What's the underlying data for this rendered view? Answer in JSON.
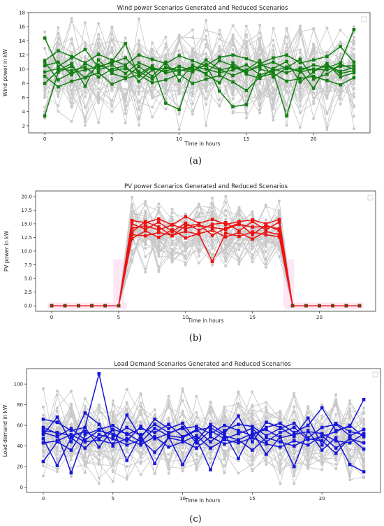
{
  "chart_data": [
    {
      "type": "line",
      "title": "Wind power Scenarios Generated and Reduced Scenarios",
      "xlabel": "Time in hours",
      "ylabel": "Wind power in kW",
      "caption": "(a)",
      "xlim": [
        -1.2,
        24.2
      ],
      "ylim": [
        1.0,
        18.0
      ],
      "xticks": [
        0,
        5,
        10,
        15,
        20
      ],
      "yticks": [
        2,
        4,
        6,
        8,
        10,
        12,
        14,
        16,
        18
      ],
      "x": [
        0,
        1,
        2,
        3,
        4,
        5,
        6,
        7,
        8,
        9,
        10,
        11,
        12,
        13,
        14,
        15,
        16,
        17,
        18,
        19,
        20,
        21,
        22,
        23
      ],
      "reduced_color": "#138013",
      "generated_color": "#c9c9c9",
      "grid": false,
      "legend": "top-right (empty)",
      "generated_range": [
        1.5,
        17.2
      ],
      "series": [
        {
          "values": [
            14.4,
            10.4,
            11.6,
            12.8,
            10.2,
            11.1,
            13.6,
            9.0,
            10.3,
            9.5,
            9.8,
            10.1,
            9.4,
            11.2,
            10.5,
            9.7,
            10.4,
            11.0,
            10.1,
            9.8,
            10.6,
            10.2,
            10.9,
            15.6
          ]
        },
        {
          "values": [
            3.4,
            9.6,
            10.4,
            8.8,
            10.6,
            9.8,
            10.1,
            9.3,
            10.5,
            5.2,
            4.3,
            9.8,
            10.7,
            6.9,
            4.7,
            5.0,
            10.0,
            9.5,
            3.4,
            9.9,
            7.3,
            10.5,
            9.4,
            9.8
          ]
        },
        {
          "values": [
            11.2,
            12.6,
            11.8,
            10.9,
            12.1,
            11.3,
            10.6,
            12.0,
            11.4,
            10.8,
            11.9,
            11.2,
            10.5,
            11.7,
            12.0,
            11.5,
            10.8,
            11.6,
            12.0,
            10.9,
            11.3,
            11.8,
            13.2,
            11.0
          ]
        },
        {
          "values": [
            9.0,
            7.5,
            8.3,
            8.8,
            9.5,
            7.9,
            8.7,
            9.2,
            8.1,
            8.5,
            9.3,
            8.0,
            8.6,
            9.1,
            8.2,
            7.0,
            8.9,
            9.4,
            8.3,
            8.7,
            9.0,
            8.4,
            7.8,
            8.8
          ]
        },
        {
          "values": [
            10.5,
            11.0,
            9.2,
            10.8,
            9.9,
            10.6,
            9.4,
            10.9,
            10.1,
            9.7,
            10.4,
            9.8,
            10.6,
            9.9,
            10.3,
            9.6,
            10.7,
            10.0,
            9.5,
            10.2,
            9.9,
            10.5,
            9.7,
            10.2
          ]
        },
        {
          "values": [
            8.0,
            9.8,
            10.8,
            7.6,
            11.3,
            9.4,
            8.8,
            10.4,
            9.0,
            11.0,
            8.4,
            10.6,
            9.2,
            8.1,
            10.9,
            9.3,
            8.7,
            10.1,
            11.1,
            8.2,
            9.6,
            10.8,
            8.9,
            9.5
          ]
        },
        {
          "values": [
            9.6,
            10.1,
            9.8,
            10.3,
            8.9,
            10.0,
            10.5,
            8.3,
            9.9,
            10.2,
            9.7,
            10.4,
            10.0,
            9.5,
            9.9,
            10.6,
            9.2,
            9.8,
            10.3,
            9.6,
            10.0,
            9.9,
            10.4,
            10.5
          ]
        },
        {
          "values": [
            11.0,
            8.5,
            9.5,
            9.9,
            10.4,
            10.9,
            11.6,
            9.7,
            8.6,
            10.3,
            9.9,
            9.6,
            11.3,
            10.0,
            9.1,
            9.9,
            11.2,
            8.9,
            10.2,
            11.4,
            8.6,
            9.3,
            10.7,
            10.0
          ]
        }
      ]
    },
    {
      "type": "line",
      "title": "PV power Scenarios Generated and Reduced Scenarios",
      "xlabel": "Time in hours",
      "ylabel": "PV power in kW",
      "caption": "(b)",
      "xlim": [
        -1.2,
        24.2
      ],
      "ylim": [
        -1.0,
        21.0
      ],
      "xticks": [
        0,
        5,
        10,
        15,
        20
      ],
      "yticks": [
        0.0,
        2.5,
        5.0,
        7.5,
        10.0,
        12.5,
        15.0,
        17.5,
        20.0
      ],
      "x": [
        0,
        1,
        2,
        3,
        4,
        5,
        6,
        7,
        8,
        9,
        10,
        11,
        12,
        13,
        14,
        15,
        16,
        17,
        18,
        19,
        20,
        21,
        22,
        23
      ],
      "reduced_color": "#ee1111",
      "generated_color": "#c9c9c9",
      "grid": false,
      "legend": "top-right (empty)",
      "generated_range": [
        6.0,
        20.2
      ],
      "series": [
        {
          "values": [
            0,
            0,
            0,
            0,
            0,
            0,
            15.6,
            15.2,
            15.9,
            14.8,
            16.3,
            15.1,
            15.8,
            14.9,
            15.4,
            15.7,
            15.0,
            15.8,
            0,
            0,
            0,
            0,
            0,
            0
          ]
        },
        {
          "values": [
            0,
            0,
            0,
            0,
            0,
            0,
            13.0,
            12.8,
            13.4,
            12.9,
            13.6,
            13.1,
            8.1,
            13.3,
            12.7,
            13.5,
            13.0,
            12.6,
            0,
            0,
            0,
            0,
            0,
            0
          ]
        },
        {
          "values": [
            0,
            0,
            0,
            0,
            0,
            0,
            14.2,
            14.6,
            13.9,
            14.8,
            14.1,
            14.7,
            14.3,
            14.0,
            14.9,
            14.4,
            14.5,
            14.1,
            0,
            0,
            0,
            0,
            0,
            0
          ]
        },
        {
          "values": [
            0,
            0,
            0,
            0,
            0,
            0,
            12.3,
            13.7,
            12.5,
            13.9,
            12.4,
            13.2,
            13.8,
            12.6,
            13.4,
            12.2,
            13.6,
            13.0,
            0,
            0,
            0,
            0,
            0,
            0
          ]
        },
        {
          "values": [
            0,
            0,
            0,
            0,
            0,
            0,
            15.0,
            14.0,
            15.3,
            13.6,
            15.1,
            13.8,
            14.9,
            15.2,
            13.7,
            15.4,
            13.9,
            15.3,
            0,
            0,
            0,
            0,
            0,
            0
          ]
        },
        {
          "values": [
            0,
            0,
            0,
            0,
            0,
            0,
            13.5,
            15.4,
            14.4,
            12.8,
            14.6,
            14.9,
            12.9,
            14.2,
            15.1,
            13.0,
            14.8,
            13.7,
            0,
            0,
            0,
            0,
            0,
            0
          ]
        }
      ]
    },
    {
      "type": "line",
      "title": "Load Demand Scenarios Generated and Reduced Scenarios",
      "xlabel": "Time in hours",
      "ylabel": "Load demand in kW",
      "caption": "(c)",
      "xlim": [
        -1.2,
        24.2
      ],
      "ylim": [
        -5,
        115
      ],
      "xticks": [
        0,
        5,
        10,
        15,
        20
      ],
      "yticks": [
        0,
        20,
        40,
        60,
        80,
        100
      ],
      "x": [
        0,
        1,
        2,
        3,
        4,
        5,
        6,
        7,
        8,
        9,
        10,
        11,
        12,
        13,
        14,
        15,
        16,
        17,
        18,
        19,
        20,
        21,
        22,
        23
      ],
      "reduced_color": "#1616d8",
      "generated_color": "#c9c9c9",
      "grid": false,
      "legend": "top-right (empty)",
      "generated_range": [
        2,
        97
      ],
      "series": [
        {
          "values": [
            66,
            63,
            55,
            58,
            110,
            48,
            58,
            50,
            61,
            53,
            57,
            59,
            52,
            60,
            55,
            50,
            58,
            62,
            53,
            60,
            77,
            55,
            59,
            85
          ]
        },
        {
          "values": [
            25,
            44,
            36,
            58,
            39,
            56,
            26,
            51,
            23,
            49,
            22,
            47,
            17,
            52,
            28,
            54,
            32,
            49,
            20,
            55,
            36,
            48,
            22,
            15
          ]
        },
        {
          "values": [
            51,
            68,
            44,
            72,
            61,
            40,
            70,
            48,
            66,
            57,
            62,
            45,
            61,
            52,
            69,
            44,
            63,
            58,
            49,
            67,
            41,
            62,
            54,
            51
          ]
        },
        {
          "values": [
            47,
            21,
            48,
            38,
            51,
            47,
            41,
            46,
            34,
            48,
            45,
            38,
            49,
            42,
            46,
            36,
            48,
            44,
            40,
            47,
            45,
            33,
            48,
            37
          ]
        },
        {
          "values": [
            58,
            52,
            14,
            51,
            56,
            60,
            51,
            57,
            53,
            61,
            49,
            56,
            44,
            55,
            61,
            59,
            50,
            57,
            62,
            48,
            58,
            61,
            50,
            56
          ]
        },
        {
          "values": [
            43,
            45,
            51,
            44,
            46,
            42,
            47,
            41,
            49,
            39,
            44,
            50,
            38,
            46,
            43,
            48,
            42,
            39,
            45,
            41,
            50,
            38,
            47,
            43
          ]
        },
        {
          "values": [
            53,
            49,
            57,
            46,
            55,
            51,
            45,
            59,
            47,
            52,
            58,
            43,
            55,
            47,
            52,
            57,
            44,
            53,
            58,
            46,
            49,
            54,
            60,
            49
          ]
        },
        {
          "values": [
            55,
            53,
            50,
            54,
            47,
            56,
            52,
            44,
            57,
            50,
            48,
            55,
            58,
            50,
            46,
            52,
            56,
            48,
            51,
            54,
            52,
            45,
            43,
            52
          ]
        }
      ]
    }
  ]
}
